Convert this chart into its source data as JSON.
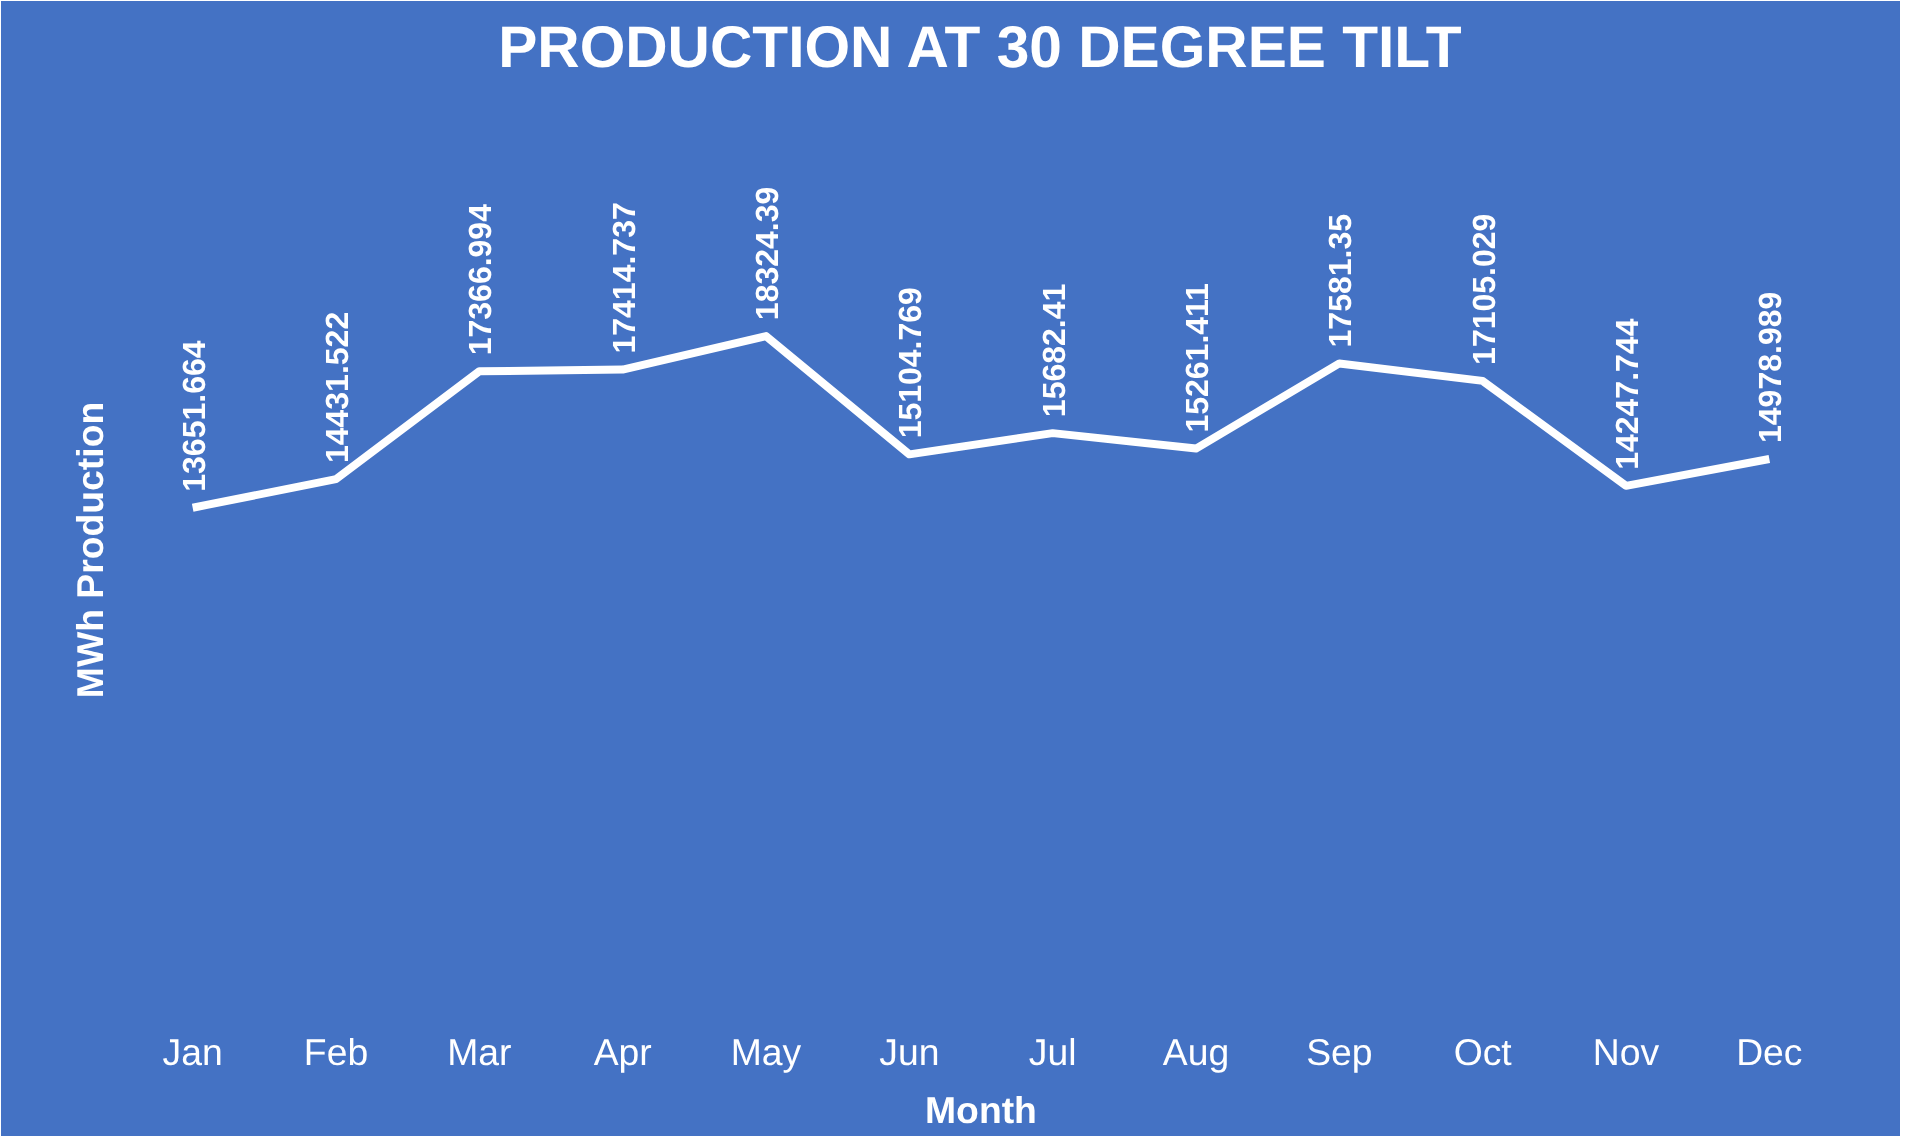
{
  "chart_data": {
    "type": "line",
    "title": "PRODUCTION AT 30 DEGREE TILT",
    "xlabel": "Month",
    "ylabel": "MWh Production",
    "categories": [
      "Jan",
      "Feb",
      "Mar",
      "Apr",
      "May",
      "Jun",
      "Jul",
      "Aug",
      "Sep",
      "Oct",
      "Nov",
      "Dec"
    ],
    "series": [
      {
        "color": "#ffffff",
        "values": [
          13651.664,
          14431.522,
          17366.994,
          17414.737,
          18324.39,
          15104.769,
          15682.41,
          15261.411,
          17581.35,
          17105.029,
          14247.744,
          14978.989
        ]
      }
    ],
    "ylim": [
      0,
      25000
    ],
    "data_labels": true,
    "tick_labels": "x",
    "grid": false,
    "marker": "none",
    "line_style": "solid"
  }
}
